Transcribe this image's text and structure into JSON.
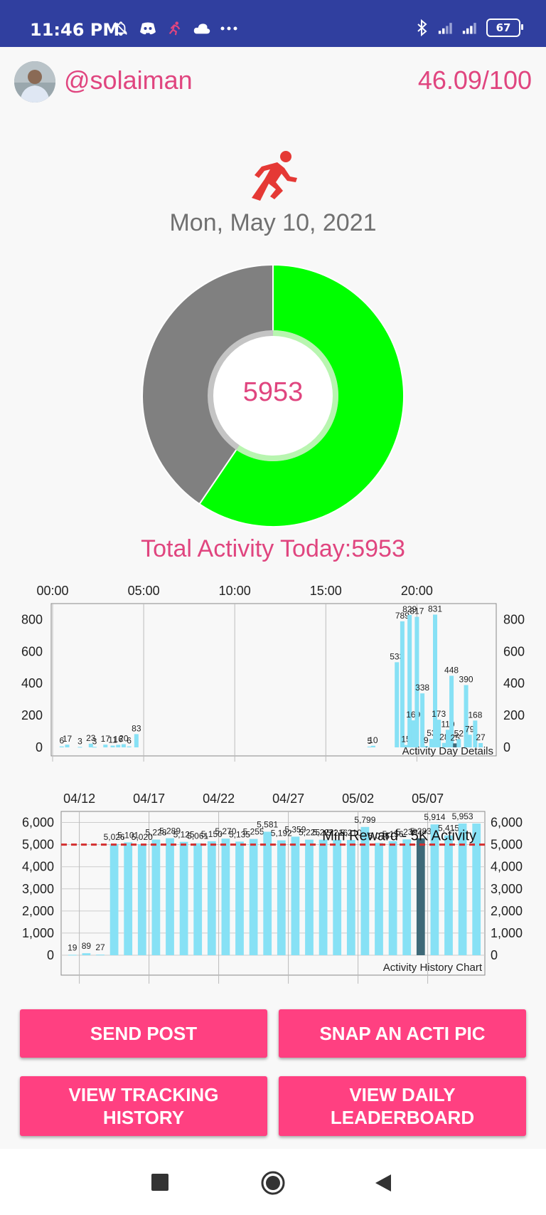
{
  "status_bar": {
    "time": "11:46 PM",
    "battery": "67"
  },
  "header": {
    "username": "@solaiman",
    "score": "46.09/100"
  },
  "date": "Mon, May 10, 2021",
  "donut": {
    "center_value": "5953",
    "progress_fraction": 0.595,
    "fill_color": "#00ff00",
    "rest_color": "#808080"
  },
  "total_activity": "Total Activity Today:5953",
  "colors": {
    "accent": "#e0457f",
    "button": "#ff4081",
    "bar": "#87e1f5",
    "bar_selected": "#3e6978",
    "reference_line": "#d32f2f"
  },
  "chart_data": [
    {
      "type": "bar",
      "title": "Activity Day Details",
      "x_ticks": [
        "00:00",
        "05:00",
        "10:00",
        "15:00",
        "20:00"
      ],
      "x_unit": "hours",
      "ylim": [
        0,
        900
      ],
      "y_ticks": [
        "0",
        "200",
        "400",
        "600",
        "800"
      ],
      "x": [
        0.5,
        0.8,
        1.5,
        2.1,
        2.3,
        2.9,
        3.3,
        3.6,
        3.9,
        4.2,
        4.6,
        17.4,
        17.6,
        18.9,
        19.2,
        19.4,
        19.6,
        19.8,
        20.0,
        20.3,
        20.5,
        20.8,
        21.0,
        21.2,
        21.5,
        21.7,
        21.9,
        22.1,
        22.3,
        22.7,
        22.9,
        23.2,
        23.5
      ],
      "values": [
        6,
        17,
        3,
        23,
        3,
        17,
        11,
        16,
        20,
        6,
        83,
        5,
        10,
        533,
        789,
        15,
        829,
        169,
        817,
        338,
        9,
        53,
        831,
        173,
        28,
        110,
        448,
        25,
        52,
        390,
        79,
        168,
        27
      ],
      "labels": [
        "6",
        "17",
        "3",
        "23",
        "3",
        "17",
        "11",
        "16",
        "20",
        "6",
        "83",
        "5",
        "10",
        "533",
        "789",
        "15",
        "829",
        "169",
        "817",
        "338",
        "9",
        "53",
        "831",
        "173",
        "28",
        "110",
        "448",
        "25",
        "52",
        "390",
        "79",
        "168",
        "27"
      ]
    },
    {
      "type": "bar",
      "title": "Activity History Chart",
      "x_ticks": [
        "04/12",
        "04/17",
        "04/22",
        "04/27",
        "05/02",
        "05/07"
      ],
      "ylim": [
        0,
        6500
      ],
      "y_ticks": [
        "0",
        "1,000",
        "2,000",
        "3,000",
        "4,000",
        "5,000",
        "6,000"
      ],
      "reference_line": {
        "value": 5000,
        "label": "Min Reward - 5K Activity"
      },
      "categories": [
        "04/11",
        "04/12",
        "04/13",
        "04/14",
        "04/15",
        "04/16",
        "04/17",
        "04/18",
        "04/19",
        "04/20",
        "04/21",
        "04/22",
        "04/23",
        "04/24",
        "04/25",
        "04/26",
        "04/27",
        "04/28",
        "04/29",
        "04/30",
        "05/01",
        "05/02",
        "05/03",
        "05/04",
        "05/05",
        "05/06",
        "05/07",
        "05/08",
        "05/09",
        "05/10"
      ],
      "values": [
        19,
        89,
        27,
        5026,
        5101,
        5020,
        5228,
        5289,
        5125,
        5061,
        5150,
        5270,
        5135,
        5255,
        5581,
        5192,
        5359,
        5225,
        5222,
        5216,
        5210,
        5799,
        5075,
        5156,
        5239,
        5283,
        5914,
        5415,
        5953,
        5953
      ],
      "labels": [
        "19",
        "89",
        "27",
        "5,026",
        "5,101",
        "5,020",
        "5,228",
        "5,289",
        "5,125",
        "5,061",
        "5,150",
        "5,270",
        "5,135",
        "5,255",
        "5,581",
        "5,192",
        "5,359",
        "5,225",
        "5,222",
        "5,216",
        "5,210",
        "5,799",
        "5,075",
        "5,156",
        "5,239",
        "5,283",
        "5,914",
        "5,415",
        "5,953",
        ""
      ],
      "selected_index": 25
    }
  ],
  "buttons": {
    "send_post": "SEND POST",
    "snap_pic": "SNAP AN ACTI PIC",
    "tracking_history": "VIEW TRACKING\nHISTORY",
    "daily_leaderboard": "VIEW DAILY\nLEADERBOARD"
  }
}
